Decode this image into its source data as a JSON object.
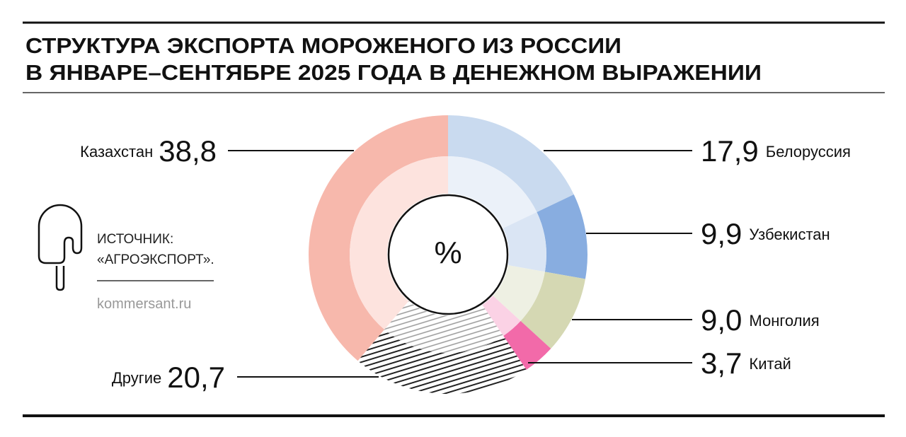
{
  "chart_data": {
    "type": "pie",
    "title": [
      "СТРУКТУРА ЭКСПОРТА МОРОЖЕНОГО ИЗ РОССИИ",
      "В ЯНВАРЕ–СЕНТЯБРЕ 2025 ГОДА В ДЕНЕЖНОМ ВЫРАЖЕНИИ"
    ],
    "center_label": "%",
    "categories": [
      "Белоруссия",
      "Узбекистан",
      "Монголия",
      "Китай",
      "Другие",
      "Казахстан"
    ],
    "values": [
      17.9,
      9.9,
      9.0,
      3.7,
      20.7,
      38.8
    ],
    "value_labels": [
      "17,9",
      "9,9",
      "9,0",
      "3,7",
      "20,7",
      "38,8"
    ],
    "colors": [
      "#c9daef",
      "#88ade0",
      "#d5d8b3",
      "#f26aa9",
      "#222222",
      "#f7b8ac"
    ],
    "inner_colors": [
      "#ebf1f9",
      "#dae5f4",
      "#eef0e3",
      "#fbd2e5",
      "#888888",
      "#fde3de"
    ],
    "hatched": [
      false,
      false,
      false,
      false,
      true,
      false
    ],
    "source": [
      "ИСТОЧНИК:",
      "«АГРОЭКСПОРТ»."
    ],
    "credit": "kommersant.ru"
  }
}
